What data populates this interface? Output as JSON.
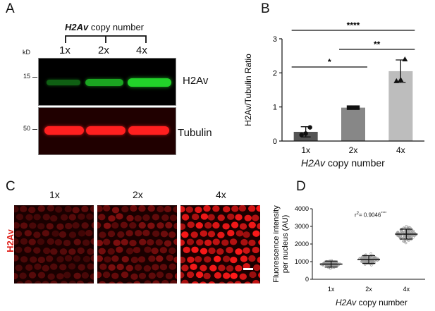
{
  "panels": {
    "a": {
      "letter": "A",
      "header_gene": "H2Av",
      "header_suffix": " copy number",
      "lanes": [
        "1x",
        "2x",
        "4x"
      ],
      "kd_label": "kD",
      "markers": [
        "15",
        "50"
      ],
      "band_labels": [
        "H2Av",
        "Tubulin"
      ],
      "colors": {
        "h2av": "#22d32a",
        "tubulin": "#ff1f1f"
      }
    },
    "b": {
      "letter": "B",
      "xlabel_gene": "H2Av",
      "xlabel_suffix": " copy number",
      "significance": [
        "****",
        "**",
        "*"
      ]
    },
    "c": {
      "letter": "C",
      "row_label": "H2Av",
      "tile_labels": [
        "1x",
        "2x",
        "4x"
      ]
    },
    "d": {
      "letter": "D",
      "r2_prefix": "r",
      "r2_sup": "2",
      "r2_value": "= 0.9046",
      "r2_stars": "****",
      "xlabel_gene": "H2Av",
      "xlabel_suffix": " copy number"
    }
  },
  "chart_data": [
    {
      "type": "bar",
      "ylabel": "H2Av/Tubulin Ratio",
      "xlabel": "H2Av copy number",
      "categories": [
        "1x",
        "2x",
        "4x"
      ],
      "values": [
        0.27,
        0.98,
        2.05
      ],
      "errors": [
        0.15,
        0.02,
        0.33
      ],
      "points": [
        [
          0.18,
          0.22,
          0.4
        ],
        [
          0.98,
          0.98,
          0.98
        ],
        [
          1.76,
          1.8,
          2.4
        ]
      ],
      "markers": [
        "circle",
        "square",
        "triangle"
      ],
      "bar_colors": [
        "#555555",
        "#878787",
        "#bdbdbd"
      ],
      "ylim": [
        0,
        3
      ],
      "yticks": [
        0,
        1,
        2,
        3
      ],
      "significance": [
        {
          "from": "1x",
          "to": "4x",
          "label": "****"
        },
        {
          "from": "2x",
          "to": "4x",
          "label": "**"
        },
        {
          "from": "1x",
          "to": "2x",
          "label": "*"
        }
      ]
    },
    {
      "type": "scatter",
      "ylabel": "Fluorescence intensity per nucleus (AU)",
      "xlabel": "H2Av copy number",
      "categories": [
        "1x",
        "2x",
        "4x"
      ],
      "means": [
        860,
        1120,
        2560
      ],
      "sd": [
        170,
        220,
        280
      ],
      "spread": [
        [
          620,
          1180
        ],
        [
          770,
          1650
        ],
        [
          2050,
          3200
        ]
      ],
      "ylim": [
        0,
        4000
      ],
      "yticks": [
        0,
        1000,
        2000,
        3000,
        4000
      ],
      "annotation": "r2= 0.9046****"
    }
  ]
}
